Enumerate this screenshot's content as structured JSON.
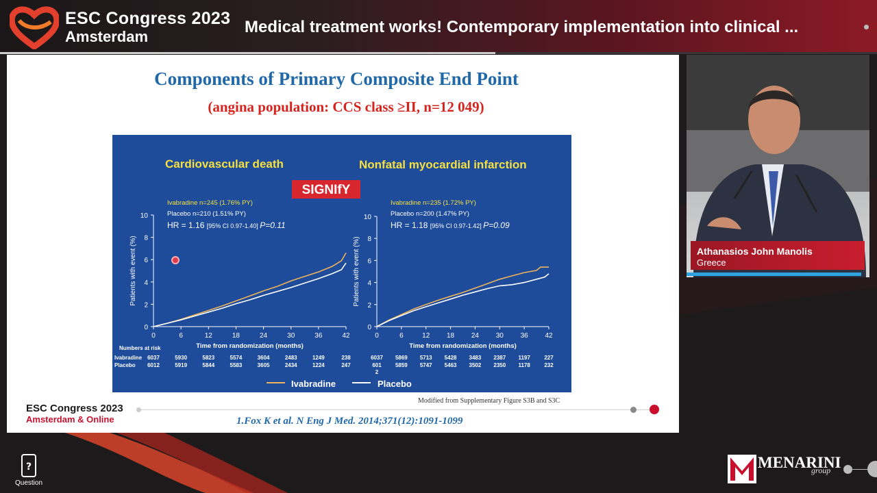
{
  "header": {
    "brand_title": "ESC Congress 2023",
    "brand_city": "Amsterdam",
    "session_title": "Medical treatment works! Contemporary implementation into clinical ...",
    "progress_fraction": 0.565
  },
  "slide": {
    "title": "Components of Primary Composite End Point",
    "subtitle": "(angina population: CCS class ≥II, n=12 049)",
    "caption": "Modified from Supplementary Figure S3B and S3C",
    "footer_name": "ESC Congress 2023",
    "footer_city": "Amsterdam & Online",
    "reference": "1.Fox K et al. N Eng J Med. 2014;371(12):1091-1099",
    "watermark": "SIGNIfY"
  },
  "legend": {
    "ivabradine": "Ivabradine",
    "placebo": "Placebo"
  },
  "colors": {
    "figure_bg": "#1e4c9a",
    "ivabradine": "#f0b35a",
    "placebo": "#ffffff",
    "yellow_text": "#f5e040",
    "accent_red": "#c8102e",
    "title_blue": "#2068a8"
  },
  "chart_data": [
    {
      "type": "line",
      "title": "Cardiovascular death",
      "xlabel": "Time from randomization (months)",
      "ylabel": "Patients with event (%)",
      "xlim": [
        0,
        42
      ],
      "ylim": [
        0,
        10
      ],
      "xticks": [
        0,
        6,
        12,
        18,
        24,
        30,
        36,
        42
      ],
      "yticks": [
        0,
        2,
        4,
        6,
        8,
        10
      ],
      "stats": {
        "ivabradine": "Ivabradine n=245 (1.76% PY)",
        "placebo": "Placebo n=210 (1.51% PY)",
        "hr": "HR = 1.16",
        "ci": "[95% CI 0.97-1.40]",
        "p": "P=0.11"
      },
      "series": [
        {
          "name": "Ivabradine",
          "x": [
            0,
            3,
            6,
            9,
            12,
            15,
            18,
            21,
            24,
            27,
            30,
            33,
            36,
            39,
            41,
            42
          ],
          "y": [
            0,
            0.3,
            0.65,
            1.05,
            1.45,
            1.85,
            2.3,
            2.75,
            3.2,
            3.6,
            4.1,
            4.5,
            4.9,
            5.4,
            5.9,
            6.6
          ]
        },
        {
          "name": "Placebo",
          "x": [
            0,
            3,
            6,
            9,
            12,
            15,
            18,
            21,
            24,
            27,
            30,
            33,
            36,
            39,
            41,
            42
          ],
          "y": [
            0,
            0.3,
            0.6,
            0.95,
            1.3,
            1.65,
            2.05,
            2.4,
            2.8,
            3.15,
            3.5,
            3.9,
            4.3,
            4.75,
            5.1,
            5.7
          ]
        }
      ],
      "numbers_at_risk": {
        "label": "Numbers at risk",
        "rows": [
          {
            "name": "Ivabradine",
            "values": [
              "6037",
              "5930",
              "5823",
              "5574",
              "3604",
              "2483",
              "1249",
              "238"
            ]
          },
          {
            "name": "Placebo",
            "values": [
              "6012",
              "5919",
              "5844",
              "5583",
              "3605",
              "2434",
              "1224",
              "247"
            ]
          }
        ]
      }
    },
    {
      "type": "line",
      "title": "Nonfatal myocardial infarction",
      "xlabel": "Time from randomization (months)",
      "ylabel": "Patients with event (%)",
      "xlim": [
        0,
        42
      ],
      "ylim": [
        0,
        10
      ],
      "xticks": [
        0,
        6,
        12,
        18,
        24,
        30,
        36,
        42
      ],
      "yticks": [
        0,
        2,
        4,
        6,
        8,
        10
      ],
      "stats": {
        "ivabradine": "Ivabradine n=235 (1.72% PY)",
        "placebo": "Placebo n=200 (1.47% PY)",
        "hr": "HR = 1.18",
        "ci": "[95% CI 0.97-1.42]",
        "p": "P=0.09"
      },
      "series": [
        {
          "name": "Ivabradine",
          "x": [
            0,
            3,
            6,
            9,
            12,
            15,
            18,
            21,
            24,
            27,
            30,
            33,
            36,
            39,
            40,
            42
          ],
          "y": [
            0,
            0.6,
            1.1,
            1.6,
            2.0,
            2.4,
            2.75,
            3.1,
            3.5,
            3.9,
            4.3,
            4.6,
            4.9,
            5.1,
            5.4,
            5.4
          ]
        },
        {
          "name": "Placebo",
          "x": [
            0,
            3,
            6,
            9,
            12,
            15,
            18,
            21,
            24,
            27,
            30,
            33,
            36,
            39,
            41,
            42
          ],
          "y": [
            0,
            0.55,
            1.0,
            1.45,
            1.8,
            2.15,
            2.5,
            2.85,
            3.15,
            3.45,
            3.7,
            3.8,
            4.0,
            4.3,
            4.5,
            4.8
          ]
        }
      ],
      "numbers_at_risk": {
        "label": "",
        "rows": [
          {
            "name": "Ivabradine",
            "values": [
              "6037",
              "5869",
              "5713",
              "5428",
              "3483",
              "2387",
              "1197",
              "227"
            ]
          },
          {
            "name": "Placebo",
            "values": [
              "601\n2",
              "5859",
              "5747",
              "5463",
              "3502",
              "2350",
              "1178",
              "232"
            ]
          }
        ]
      }
    }
  ],
  "speaker": {
    "name": "Athanasios John Manolis",
    "country": "Greece"
  },
  "question": {
    "label": "Question"
  },
  "sponsor": {
    "name": "MENARINI",
    "group": "group"
  }
}
